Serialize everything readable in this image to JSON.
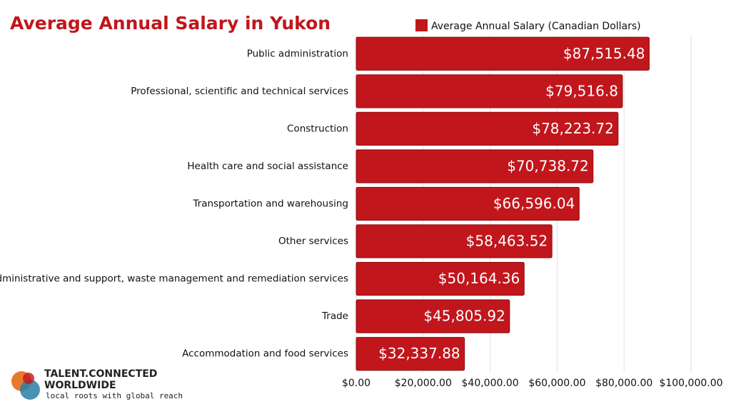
{
  "chart_data": {
    "type": "bar",
    "orientation": "horizontal",
    "title": "Average Annual Salary in Yukon",
    "categories": [
      "Public administration",
      "Professional, scientific and technical services",
      "Construction",
      "Health care and social assistance",
      "Transportation and warehousing",
      "Other services",
      "Administrative and support, waste management and remediation services",
      "Trade",
      "Accommodation and food services"
    ],
    "series": [
      {
        "name": "Average Annual Salary (Canadian Dollars)",
        "color": "#c1161c",
        "values": [
          87515.48,
          79516.8,
          78223.72,
          70738.72,
          66596.04,
          58463.52,
          50164.36,
          45805.92,
          32337.88
        ],
        "value_labels": [
          "$87,515.48",
          "$79,516.8",
          "$78,223.72",
          "$70,738.72",
          "$66,596.04",
          "$58,463.52",
          "$50,164.36",
          "$45,805.92",
          "$32,337.88"
        ]
      }
    ],
    "xlim": [
      0,
      100000
    ],
    "xticks": [
      {
        "value": 0,
        "label": "$0.00"
      },
      {
        "value": 20000,
        "label": "$20,000.00"
      },
      {
        "value": 40000,
        "label": "$40,000.00"
      },
      {
        "value": 60000,
        "label": "$60,000.00"
      },
      {
        "value": 80000,
        "label": "$80,000.00"
      },
      {
        "value": 100000,
        "label": "$100,000.00"
      }
    ],
    "grid": true,
    "legend": "top"
  },
  "logo": {
    "name_line1": "TALENT.CONNECTED",
    "name_line2": "WORLDWIDE",
    "tagline": "local roots with global reach"
  }
}
